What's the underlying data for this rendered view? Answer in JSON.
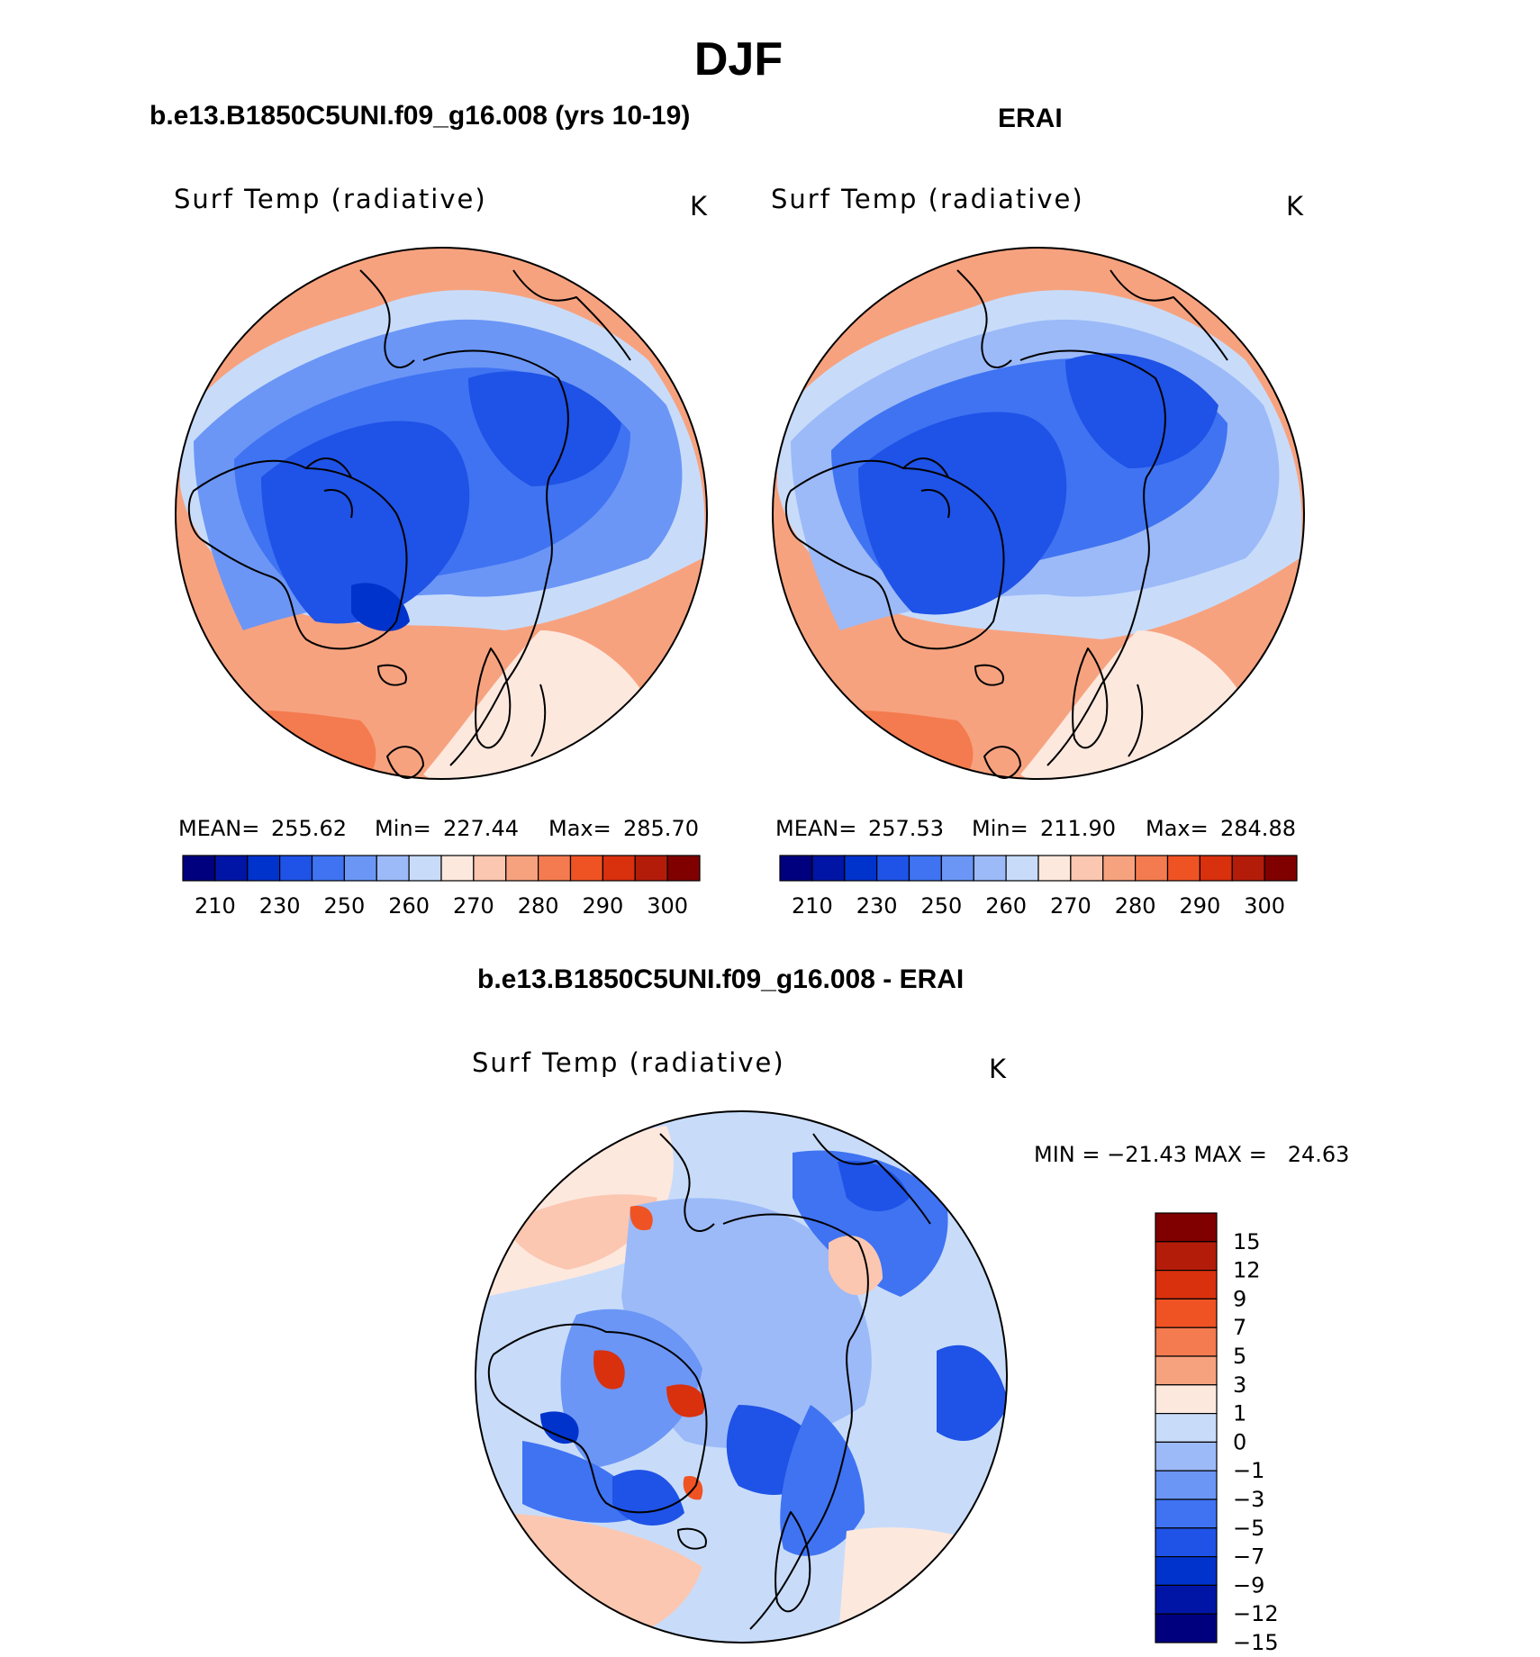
{
  "page": {
    "season": "DJF",
    "case_label": "b.e13.B1850C5UNI.f09_g16.008 (yrs 10-19)",
    "obs_label": "ERAI",
    "diff_label": "b.e13.B1850C5UNI.f09_g16.008 - ERAI"
  },
  "panels": {
    "model": {
      "variable": "Surf Temp (radiative)",
      "units": "K",
      "mean_label": "MEAN=",
      "mean": "255.62",
      "min_label": "Min=",
      "min": "227.44",
      "max_label": "Max=",
      "max": "285.70"
    },
    "obs": {
      "variable": "Surf Temp (radiative)",
      "units": "K",
      "mean_label": "MEAN=",
      "mean": "257.53",
      "min_label": "Min=",
      "min": "211.90",
      "max_label": "Max=",
      "max": "284.88"
    },
    "diff": {
      "variable": "Surf Temp (radiative)",
      "units": "K",
      "minmax_text": "MIN = −21.43 MAX =   24.63"
    }
  },
  "colorbars": {
    "abs": {
      "colors": [
        "#00007f",
        "#0015a6",
        "#0033cc",
        "#1f52e6",
        "#3f73f2",
        "#6b96f6",
        "#9cbaf8",
        "#c8dcfa",
        "#fde8de",
        "#fbc7b1",
        "#f7a27f",
        "#f47b4f",
        "#f05323",
        "#d9300e",
        "#b41c0a",
        "#800000"
      ],
      "labels": [
        "210",
        "230",
        "250",
        "260",
        "270",
        "280",
        "290",
        "300"
      ]
    },
    "diff": {
      "colors": [
        "#800000",
        "#b41c0a",
        "#d9300e",
        "#f05323",
        "#f47b4f",
        "#f7a27f",
        "#fde8de",
        "#c8dcfa",
        "#9cbaf8",
        "#6b96f6",
        "#3f73f2",
        "#1f52e6",
        "#0033cc",
        "#0015a6",
        "#00007f"
      ],
      "labels": [
        "15",
        "12",
        "9",
        "7",
        "5",
        "3",
        "1",
        "0",
        "−1",
        "−3",
        "−5",
        "−7",
        "−9",
        "−12",
        "−15"
      ]
    }
  }
}
